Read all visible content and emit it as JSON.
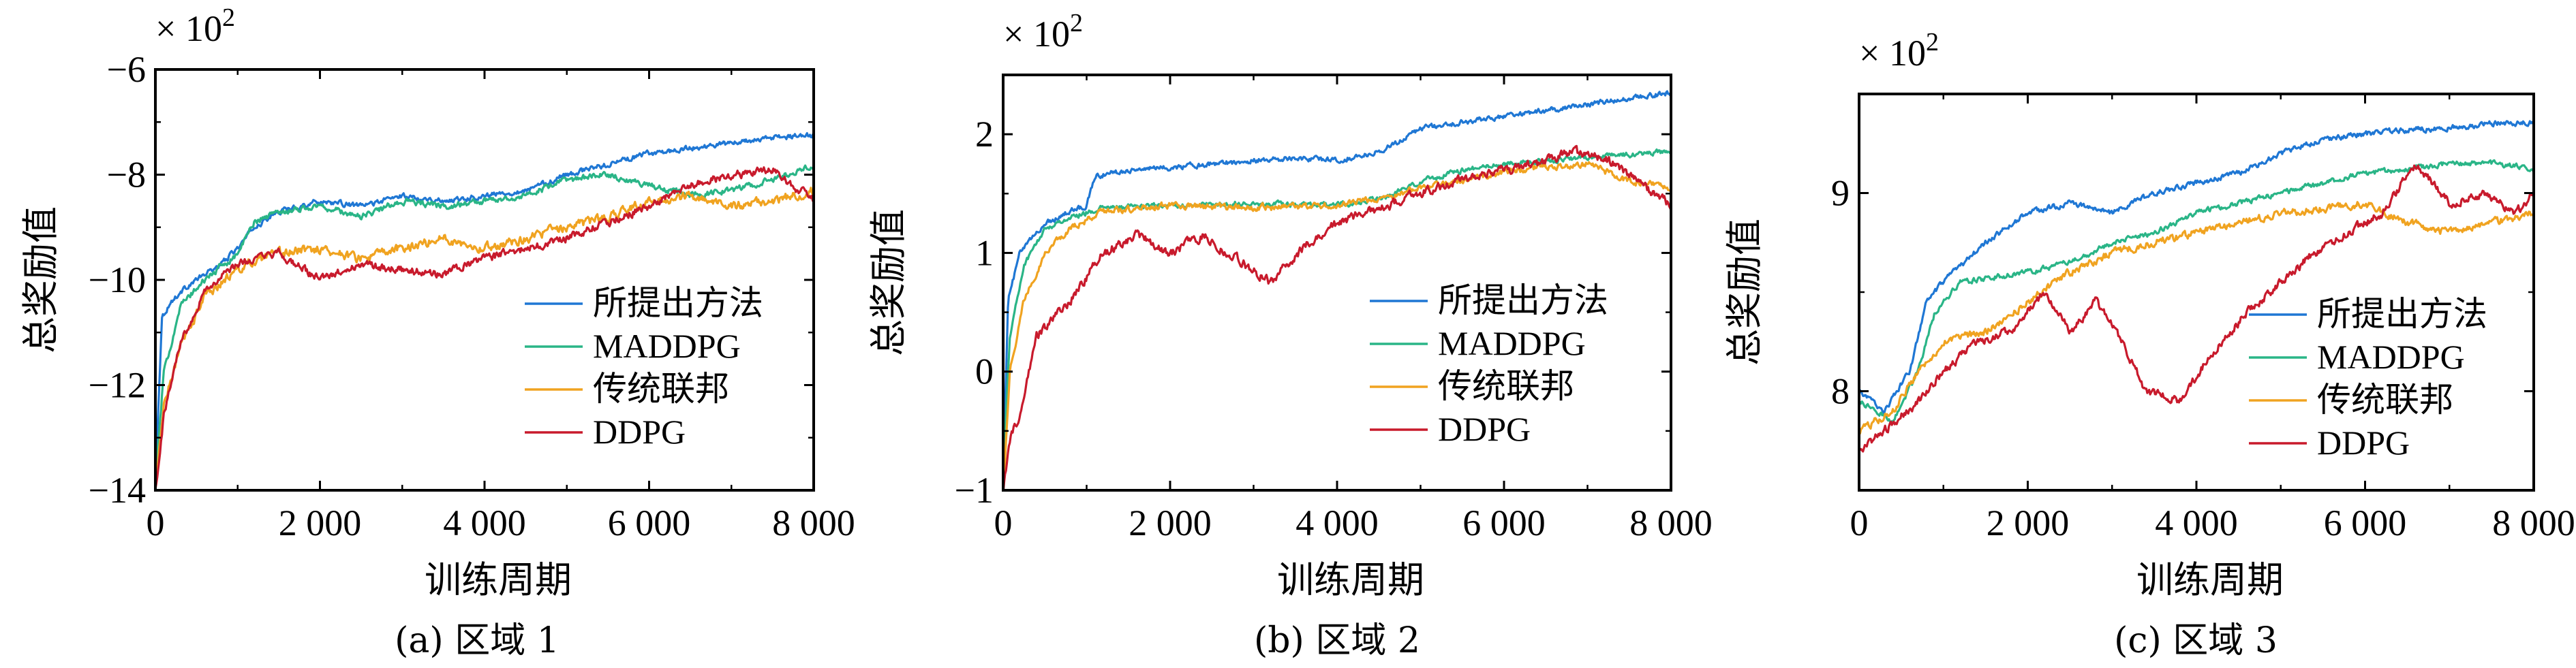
{
  "chart_data": [
    {
      "type": "line",
      "caption": "(a) 区域 1",
      "xlabel": "训练周期",
      "ylabel": "总奖励值",
      "multiplier": "× 10",
      "multiplier_exp": "2",
      "xlim": [
        0,
        8000
      ],
      "ylim": [
        -14,
        -6
      ],
      "xticks": [
        0,
        2000,
        4000,
        6000,
        8000
      ],
      "xtick_labels": [
        "0",
        "2 000",
        "4 000",
        "6 000",
        "8 000"
      ],
      "yticks": [
        -14,
        -12,
        -10,
        -8,
        -6
      ],
      "ytick_labels": [
        "−14",
        "−12",
        "−10",
        "−8",
        "−6"
      ],
      "legend_position": "lower-right",
      "series": [
        {
          "name": "所提出方法",
          "color": "#1f77d4",
          "noise": 0.09,
          "points": [
            [
              0,
              -13.8
            ],
            [
              80,
              -10.7
            ],
            [
              200,
              -10.4
            ],
            [
              400,
              -10.1
            ],
            [
              600,
              -9.9
            ],
            [
              800,
              -9.7
            ],
            [
              1000,
              -9.4
            ],
            [
              1200,
              -9.0
            ],
            [
              1500,
              -8.7
            ],
            [
              2000,
              -8.5
            ],
            [
              2500,
              -8.6
            ],
            [
              3000,
              -8.4
            ],
            [
              3500,
              -8.5
            ],
            [
              4000,
              -8.4
            ],
            [
              4500,
              -8.3
            ],
            [
              5000,
              -8.0
            ],
            [
              5500,
              -7.8
            ],
            [
              6000,
              -7.6
            ],
            [
              6500,
              -7.5
            ],
            [
              7000,
              -7.4
            ],
            [
              7500,
              -7.3
            ],
            [
              8000,
              -7.25
            ]
          ]
        },
        {
          "name": "MADDPG",
          "color": "#2ab587",
          "noise": 0.11,
          "points": [
            [
              0,
              -13.9
            ],
            [
              100,
              -11.8
            ],
            [
              300,
              -10.5
            ],
            [
              600,
              -10.0
            ],
            [
              1000,
              -9.5
            ],
            [
              1200,
              -8.9
            ],
            [
              1500,
              -8.7
            ],
            [
              2000,
              -8.6
            ],
            [
              2500,
              -8.8
            ],
            [
              3000,
              -8.5
            ],
            [
              3500,
              -8.6
            ],
            [
              4000,
              -8.5
            ],
            [
              4500,
              -8.4
            ],
            [
              5000,
              -8.1
            ],
            [
              5500,
              -8.0
            ],
            [
              6000,
              -8.2
            ],
            [
              6500,
              -8.4
            ],
            [
              7000,
              -8.3
            ],
            [
              7500,
              -8.1
            ],
            [
              8000,
              -7.8
            ]
          ]
        },
        {
          "name": "传统联邦",
          "color": "#f0a320",
          "noise": 0.16,
          "points": [
            [
              0,
              -14.0
            ],
            [
              100,
              -12.4
            ],
            [
              300,
              -11.3
            ],
            [
              600,
              -10.3
            ],
            [
              1000,
              -9.8
            ],
            [
              1500,
              -9.5
            ],
            [
              2000,
              -9.4
            ],
            [
              2500,
              -9.6
            ],
            [
              3000,
              -9.4
            ],
            [
              3500,
              -9.2
            ],
            [
              4000,
              -9.4
            ],
            [
              4500,
              -9.2
            ],
            [
              5000,
              -9.0
            ],
            [
              5500,
              -8.8
            ],
            [
              6000,
              -8.5
            ],
            [
              6500,
              -8.4
            ],
            [
              7000,
              -8.6
            ],
            [
              7500,
              -8.5
            ],
            [
              8000,
              -8.3
            ]
          ]
        },
        {
          "name": "DDPG",
          "color": "#c81a2c",
          "noise": 0.14,
          "points": [
            [
              0,
              -14.0
            ],
            [
              100,
              -12.6
            ],
            [
              300,
              -11.2
            ],
            [
              600,
              -10.2
            ],
            [
              1000,
              -9.7
            ],
            [
              1500,
              -9.5
            ],
            [
              2000,
              -10.0
            ],
            [
              2500,
              -9.7
            ],
            [
              3000,
              -9.8
            ],
            [
              3500,
              -9.9
            ],
            [
              4000,
              -9.6
            ],
            [
              4500,
              -9.4
            ],
            [
              5000,
              -9.2
            ],
            [
              5500,
              -8.9
            ],
            [
              6000,
              -8.6
            ],
            [
              6500,
              -8.2
            ],
            [
              7000,
              -8.0
            ],
            [
              7500,
              -7.9
            ],
            [
              8000,
              -8.5
            ]
          ]
        }
      ]
    },
    {
      "type": "line",
      "caption": "(b) 区域 2",
      "xlabel": "训练周期",
      "ylabel": "总奖励值",
      "multiplier": "× 10",
      "multiplier_exp": "2",
      "xlim": [
        0,
        8000
      ],
      "ylim": [
        -1,
        2.5
      ],
      "xticks": [
        0,
        2000,
        4000,
        6000,
        8000
      ],
      "xtick_labels": [
        "0",
        "2 000",
        "4 000",
        "6 000",
        "8 000"
      ],
      "yticks": [
        -1,
        0,
        1,
        2
      ],
      "ytick_labels": [
        "−1",
        "0",
        "1",
        "2"
      ],
      "legend_position": "lower-right",
      "series": [
        {
          "name": "所提出方法",
          "color": "#1f77d4",
          "noise": 0.04,
          "points": [
            [
              0,
              -0.9
            ],
            [
              60,
              0.6
            ],
            [
              200,
              1.0
            ],
            [
              500,
              1.25
            ],
            [
              800,
              1.35
            ],
            [
              1000,
              1.4
            ],
            [
              1100,
              1.65
            ],
            [
              1500,
              1.7
            ],
            [
              2000,
              1.72
            ],
            [
              2500,
              1.75
            ],
            [
              3000,
              1.78
            ],
            [
              3500,
              1.8
            ],
            [
              4000,
              1.78
            ],
            [
              4500,
              1.85
            ],
            [
              5000,
              2.05
            ],
            [
              5500,
              2.1
            ],
            [
              6000,
              2.15
            ],
            [
              6500,
              2.2
            ],
            [
              7000,
              2.25
            ],
            [
              7500,
              2.3
            ],
            [
              8000,
              2.35
            ]
          ]
        },
        {
          "name": "MADDPG",
          "color": "#2ab587",
          "noise": 0.04,
          "points": [
            [
              0,
              -0.9
            ],
            [
              80,
              0.3
            ],
            [
              250,
              0.9
            ],
            [
              500,
              1.2
            ],
            [
              800,
              1.3
            ],
            [
              1200,
              1.38
            ],
            [
              2000,
              1.4
            ],
            [
              3000,
              1.42
            ],
            [
              4000,
              1.4
            ],
            [
              4500,
              1.45
            ],
            [
              5000,
              1.6
            ],
            [
              5500,
              1.7
            ],
            [
              6000,
              1.75
            ],
            [
              6500,
              1.78
            ],
            [
              7000,
              1.8
            ],
            [
              7500,
              1.83
            ],
            [
              8000,
              1.86
            ]
          ]
        },
        {
          "name": "传统联邦",
          "color": "#f0a320",
          "noise": 0.05,
          "points": [
            [
              0,
              -1.0
            ],
            [
              80,
              0.0
            ],
            [
              250,
              0.6
            ],
            [
              500,
              1.0
            ],
            [
              800,
              1.2
            ],
            [
              1200,
              1.35
            ],
            [
              2000,
              1.4
            ],
            [
              3000,
              1.38
            ],
            [
              4000,
              1.4
            ],
            [
              4500,
              1.45
            ],
            [
              5000,
              1.55
            ],
            [
              5500,
              1.6
            ],
            [
              6000,
              1.68
            ],
            [
              6500,
              1.72
            ],
            [
              7000,
              1.75
            ],
            [
              7500,
              1.6
            ],
            [
              8000,
              1.55
            ]
          ]
        },
        {
          "name": "DDPG",
          "color": "#c81a2c",
          "noise": 0.07,
          "points": [
            [
              0,
              -1.0
            ],
            [
              100,
              -0.5
            ],
            [
              200,
              -0.4
            ],
            [
              400,
              0.3
            ],
            [
              800,
              0.6
            ],
            [
              1200,
              1.0
            ],
            [
              1600,
              1.15
            ],
            [
              2000,
              1.0
            ],
            [
              2400,
              1.15
            ],
            [
              2800,
              0.95
            ],
            [
              3200,
              0.75
            ],
            [
              3600,
              1.05
            ],
            [
              4000,
              1.25
            ],
            [
              4400,
              1.35
            ],
            [
              4800,
              1.45
            ],
            [
              5200,
              1.55
            ],
            [
              5600,
              1.65
            ],
            [
              6000,
              1.7
            ],
            [
              6400,
              1.75
            ],
            [
              6800,
              1.85
            ],
            [
              7200,
              1.8
            ],
            [
              7600,
              1.6
            ],
            [
              8000,
              1.4
            ]
          ]
        }
      ]
    },
    {
      "type": "line",
      "caption": "(c) 区域 3",
      "xlabel": "训练周期",
      "ylabel": "总奖励值",
      "multiplier": "× 10",
      "multiplier_exp": "2",
      "xlim": [
        0,
        8000
      ],
      "ylim": [
        7.5,
        9.5
      ],
      "xticks": [
        0,
        2000,
        4000,
        6000,
        8000
      ],
      "xtick_labels": [
        "0",
        "2 000",
        "4 000",
        "6 000",
        "8 000"
      ],
      "yticks": [
        8,
        9
      ],
      "ytick_labels": [
        "8",
        "9"
      ],
      "legend_position": "lower-right",
      "series": [
        {
          "name": "所提出方法",
          "color": "#1f77d4",
          "noise": 0.025,
          "points": [
            [
              0,
              8.0
            ],
            [
              300,
              7.9
            ],
            [
              600,
              8.1
            ],
            [
              800,
              8.45
            ],
            [
              1000,
              8.55
            ],
            [
              1500,
              8.75
            ],
            [
              2000,
              8.9
            ],
            [
              2500,
              8.95
            ],
            [
              3000,
              8.9
            ],
            [
              3500,
              9.0
            ],
            [
              4000,
              9.05
            ],
            [
              4500,
              9.1
            ],
            [
              5000,
              9.2
            ],
            [
              5500,
              9.27
            ],
            [
              6000,
              9.3
            ],
            [
              6500,
              9.32
            ],
            [
              7000,
              9.33
            ],
            [
              7500,
              9.35
            ],
            [
              8000,
              9.36
            ]
          ]
        },
        {
          "name": "MADDPG",
          "color": "#2ab587",
          "noise": 0.025,
          "points": [
            [
              0,
              7.95
            ],
            [
              400,
              7.85
            ],
            [
              700,
              8.1
            ],
            [
              900,
              8.4
            ],
            [
              1200,
              8.55
            ],
            [
              2000,
              8.6
            ],
            [
              2500,
              8.65
            ],
            [
              3000,
              8.75
            ],
            [
              3500,
              8.8
            ],
            [
              4000,
              8.9
            ],
            [
              4500,
              8.95
            ],
            [
              5000,
              9.0
            ],
            [
              5500,
              9.05
            ],
            [
              6000,
              9.1
            ],
            [
              6500,
              9.12
            ],
            [
              7000,
              9.15
            ],
            [
              7500,
              9.15
            ],
            [
              8000,
              9.12
            ]
          ]
        },
        {
          "name": "传统联邦",
          "color": "#f0a320",
          "noise": 0.035,
          "points": [
            [
              0,
              7.8
            ],
            [
              400,
              7.9
            ],
            [
              700,
              8.1
            ],
            [
              1000,
              8.25
            ],
            [
              1500,
              8.3
            ],
            [
              2000,
              8.45
            ],
            [
              2500,
              8.6
            ],
            [
              3000,
              8.7
            ],
            [
              3500,
              8.75
            ],
            [
              4000,
              8.8
            ],
            [
              4500,
              8.85
            ],
            [
              5000,
              8.9
            ],
            [
              5500,
              8.92
            ],
            [
              6000,
              8.95
            ],
            [
              6500,
              8.85
            ],
            [
              7000,
              8.8
            ],
            [
              7500,
              8.85
            ],
            [
              8000,
              8.9
            ]
          ]
        },
        {
          "name": "DDPG",
          "color": "#c81a2c",
          "noise": 0.04,
          "points": [
            [
              0,
              7.7
            ],
            [
              300,
              7.8
            ],
            [
              700,
              7.95
            ],
            [
              1000,
              8.1
            ],
            [
              1400,
              8.25
            ],
            [
              1800,
              8.3
            ],
            [
              2200,
              8.5
            ],
            [
              2500,
              8.3
            ],
            [
              2800,
              8.45
            ],
            [
              3000,
              8.35
            ],
            [
              3400,
              8.0
            ],
            [
              3800,
              7.95
            ],
            [
              4200,
              8.2
            ],
            [
              4600,
              8.4
            ],
            [
              5000,
              8.55
            ],
            [
              5400,
              8.7
            ],
            [
              5800,
              8.8
            ],
            [
              6200,
              8.9
            ],
            [
              6600,
              9.15
            ],
            [
              7000,
              8.95
            ],
            [
              7400,
              9.0
            ],
            [
              7800,
              8.9
            ],
            [
              8000,
              9.0
            ]
          ]
        }
      ]
    }
  ]
}
